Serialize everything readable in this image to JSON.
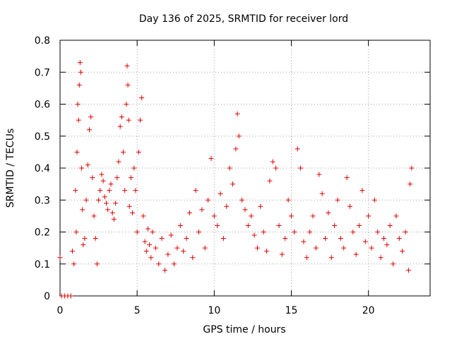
{
  "chart_data": {
    "type": "scatter",
    "title": "Day 136 of 2025, SRMTID for receiver lord",
    "xlabel": "GPS time / hours",
    "ylabel": "SRMTID / TECUs",
    "xlim": [
      0,
      24
    ],
    "ylim": [
      0,
      0.8
    ],
    "xticks": [
      0,
      5,
      10,
      15,
      20
    ],
    "xtick_labels": [
      "0",
      "5",
      "10",
      "15",
      "20"
    ],
    "yticks": [
      0,
      0.1,
      0.2,
      0.3,
      0.4,
      0.5,
      0.6,
      0.7,
      0.8
    ],
    "ytick_labels": [
      "0",
      "0.1",
      "0.2",
      "0.3",
      "0.4",
      "0.5",
      "0.6",
      "0.7",
      "0.8"
    ],
    "grid": true,
    "marker": "+",
    "marker_color": "#e00000",
    "series": [
      {
        "name": "SRMTID",
        "x": [
          0.0,
          0.1,
          0.3,
          0.5,
          0.7,
          0.8,
          0.9,
          1.0,
          1.05,
          1.1,
          1.15,
          1.2,
          1.25,
          1.3,
          1.35,
          1.4,
          1.45,
          1.5,
          1.6,
          1.7,
          1.8,
          1.9,
          2.0,
          2.1,
          2.2,
          2.3,
          2.4,
          2.5,
          2.6,
          2.7,
          2.8,
          2.9,
          3.0,
          3.1,
          3.2,
          3.3,
          3.4,
          3.5,
          3.6,
          3.7,
          3.8,
          3.9,
          4.0,
          4.1,
          4.2,
          4.3,
          4.35,
          4.4,
          4.45,
          4.5,
          4.6,
          4.7,
          4.8,
          4.9,
          5.0,
          5.1,
          5.2,
          5.3,
          5.4,
          5.5,
          5.6,
          5.7,
          5.8,
          5.9,
          6.0,
          6.2,
          6.4,
          6.6,
          6.8,
          7.0,
          7.2,
          7.4,
          7.6,
          7.8,
          8.0,
          8.2,
          8.4,
          8.6,
          8.8,
          9.0,
          9.2,
          9.4,
          9.6,
          9.8,
          10.0,
          10.2,
          10.4,
          10.6,
          10.8,
          11.0,
          11.2,
          11.4,
          11.5,
          11.6,
          11.8,
          12.0,
          12.2,
          12.4,
          12.6,
          12.8,
          13.0,
          13.2,
          13.4,
          13.6,
          13.8,
          14.0,
          14.2,
          14.4,
          14.6,
          14.8,
          15.0,
          15.2,
          15.4,
          15.6,
          15.8,
          16.0,
          16.2,
          16.4,
          16.6,
          16.8,
          17.0,
          17.2,
          17.4,
          17.6,
          17.8,
          18.0,
          18.2,
          18.4,
          18.6,
          18.8,
          19.0,
          19.2,
          19.4,
          19.6,
          19.8,
          20.0,
          20.2,
          20.4,
          20.6,
          20.8,
          21.0,
          21.2,
          21.4,
          21.6,
          21.8,
          22.0,
          22.2,
          22.4,
          22.6,
          22.7,
          22.8
        ],
        "y": [
          0.12,
          0.0,
          0.0,
          0.0,
          0.0,
          0.14,
          0.1,
          0.33,
          0.2,
          0.45,
          0.6,
          0.55,
          0.66,
          0.73,
          0.7,
          0.4,
          0.27,
          0.16,
          0.18,
          0.3,
          0.41,
          0.52,
          0.56,
          0.37,
          0.25,
          0.18,
          0.1,
          0.3,
          0.33,
          0.38,
          0.36,
          0.31,
          0.29,
          0.27,
          0.33,
          0.35,
          0.26,
          0.24,
          0.29,
          0.37,
          0.42,
          0.53,
          0.56,
          0.45,
          0.33,
          0.6,
          0.72,
          0.66,
          0.55,
          0.28,
          0.37,
          0.26,
          0.4,
          0.33,
          0.2,
          0.45,
          0.55,
          0.62,
          0.25,
          0.17,
          0.14,
          0.21,
          0.16,
          0.12,
          0.2,
          0.15,
          0.1,
          0.18,
          0.08,
          0.13,
          0.19,
          0.1,
          0.15,
          0.22,
          0.14,
          0.18,
          0.26,
          0.12,
          0.33,
          0.2,
          0.27,
          0.15,
          0.3,
          0.43,
          0.25,
          0.22,
          0.32,
          0.18,
          0.28,
          0.4,
          0.35,
          0.46,
          0.57,
          0.5,
          0.3,
          0.27,
          0.22,
          0.25,
          0.19,
          0.15,
          0.28,
          0.2,
          0.14,
          0.36,
          0.42,
          0.4,
          0.22,
          0.13,
          0.18,
          0.3,
          0.25,
          0.2,
          0.46,
          0.4,
          0.17,
          0.12,
          0.2,
          0.25,
          0.15,
          0.38,
          0.32,
          0.18,
          0.26,
          0.12,
          0.22,
          0.3,
          0.18,
          0.15,
          0.37,
          0.28,
          0.2,
          0.13,
          0.22,
          0.33,
          0.17,
          0.25,
          0.15,
          0.3,
          0.2,
          0.12,
          0.18,
          0.16,
          0.22,
          0.1,
          0.25,
          0.18,
          0.14,
          0.2,
          0.08,
          0.35,
          0.4
        ]
      }
    ]
  }
}
